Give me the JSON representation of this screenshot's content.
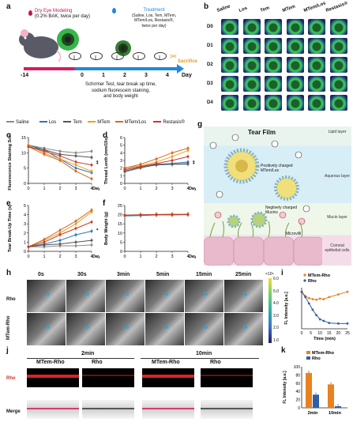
{
  "panels": {
    "a": {
      "label": "a",
      "modeling": [
        "Dry Eye Modeling",
        "(0.2% BAK, twice per day)"
      ],
      "treatment": [
        "Treatment",
        "(Saline, Los, Tem, MTem,",
        "MTem/Los, Restasis®,",
        "twice per day)"
      ],
      "sacrifice": "Sacrifice",
      "timeline": [
        "-14",
        "0",
        "1",
        "2",
        "3",
        "4"
      ],
      "day_label": "Day",
      "tests": [
        "Schirmer Test, tear break up time,",
        "sodium fluorescein staining,",
        "and body weight"
      ]
    },
    "b": {
      "label": "b",
      "groups": [
        "Saline",
        "Los",
        "Tem",
        "MTem",
        "MTem/Los",
        "Restasis®"
      ],
      "days": [
        "D0",
        "D1",
        "D2",
        "D3",
        "D4"
      ]
    },
    "legend": [
      "Saline",
      "Los",
      "Tem",
      "MTem",
      "MTem/Los",
      "Restasis®"
    ],
    "g": {
      "label": "g",
      "title": "Tear Film",
      "layers": [
        "Lipid layer",
        "Aqueous layer",
        "Mucin layer",
        "Corneal epithelial cells"
      ],
      "annotations": [
        "Positively charged MTem/Los",
        "Negtively charged Mucins",
        "Microvilli"
      ]
    },
    "h": {
      "label": "h",
      "times": [
        "0s",
        "30s",
        "3min",
        "5min",
        "15min",
        "25min"
      ],
      "rows": [
        "Rho",
        "MTem-Rho"
      ],
      "colorbar_title": "×10⁸",
      "colorbar_ticks": [
        "6.0",
        "5.0",
        "4.0",
        "3.0",
        "2.0",
        "1.0"
      ]
    },
    "j": {
      "label": "j",
      "times": [
        "2min",
        "10min"
      ],
      "cols": [
        "MTem-Rho",
        "Rho",
        "MTem-Rho",
        "Rho"
      ],
      "rows": [
        "Rho",
        "Merge"
      ]
    }
  },
  "chart_data": [
    {
      "panel": "c",
      "type": "line",
      "ylabel": "Fluorescence Staining Score",
      "xlabel": "Day",
      "x": [
        0,
        1,
        2,
        3,
        4
      ],
      "ylim": [
        0,
        15
      ],
      "yticks": [
        0,
        5,
        10,
        15
      ],
      "series": [
        {
          "name": "Saline",
          "color": "#8a8a8a",
          "values": [
            12.5,
            11.5,
            10.5,
            10,
            10.5
          ]
        },
        {
          "name": "Los",
          "color": "#2e75b6",
          "values": [
            12.5,
            11,
            8,
            5,
            3.5
          ]
        },
        {
          "name": "Tem",
          "color": "#555555",
          "values": [
            12,
            11,
            9.5,
            9,
            8.5
          ]
        },
        {
          "name": "MTem",
          "color": "#e8a020",
          "values": [
            12.5,
            10,
            8,
            6,
            4
          ]
        },
        {
          "name": "MTem/Los",
          "color": "#d46a1f",
          "values": [
            12,
            9.5,
            7.5,
            4,
            1.5
          ]
        },
        {
          "name": "Restasis®",
          "color": "#c83a2a",
          "values": [
            12,
            10.5,
            9,
            7,
            6
          ]
        }
      ],
      "annotation": "**"
    },
    {
      "panel": "d",
      "type": "line",
      "ylabel": "Thread Lenth (mm/15s)",
      "xlabel": "Day",
      "x": [
        0,
        1,
        2,
        3,
        4
      ],
      "ylim": [
        0,
        6
      ],
      "yticks": [
        0,
        1,
        2,
        3,
        4,
        5,
        6
      ],
      "series": [
        {
          "name": "Saline",
          "color": "#8a8a8a",
          "values": [
            1.5,
            2,
            2.5,
            2.5,
            2.5
          ]
        },
        {
          "name": "Los",
          "color": "#2e75b6",
          "values": [
            1.8,
            2.2,
            2.5,
            2.6,
            2.8
          ]
        },
        {
          "name": "Tem",
          "color": "#555555",
          "values": [
            1.6,
            2.1,
            2.4,
            2.5,
            2.6
          ]
        },
        {
          "name": "MTem",
          "color": "#e8a020",
          "values": [
            2,
            2.3,
            2.8,
            3.5,
            4.3
          ]
        },
        {
          "name": "MTem/Los",
          "color": "#d46a1f",
          "values": [
            2,
            2.5,
            3.2,
            4,
            4.6
          ]
        },
        {
          "name": "Restasis®",
          "color": "#c83a2a",
          "values": [
            1.8,
            2.2,
            2.6,
            3,
            3.5
          ]
        }
      ],
      "annotation": "**"
    },
    {
      "panel": "e",
      "type": "line",
      "ylabel": "Tear Break-Up Time (s)",
      "xlabel": "Day",
      "x": [
        0,
        1,
        2,
        3,
        4
      ],
      "ylim": [
        0,
        5
      ],
      "yticks": [
        0,
        1,
        2,
        3,
        4,
        5
      ],
      "series": [
        {
          "name": "Saline",
          "color": "#8a8a8a",
          "values": [
            0.5,
            0.5,
            0.6,
            0.6,
            0.7
          ]
        },
        {
          "name": "Los",
          "color": "#2e75b6",
          "values": [
            0.5,
            0.8,
            1.2,
            1.8,
            2.2
          ]
        },
        {
          "name": "Tem",
          "color": "#555555",
          "values": [
            0.5,
            0.7,
            0.8,
            1.0,
            1.2
          ]
        },
        {
          "name": "MTem",
          "color": "#e8a020",
          "values": [
            0.5,
            1.2,
            2.0,
            3.0,
            4.3
          ]
        },
        {
          "name": "MTem/Los",
          "color": "#d46a1f",
          "values": [
            0.5,
            1.3,
            2.3,
            3.3,
            4.5
          ]
        },
        {
          "name": "Restasis®",
          "color": "#c83a2a",
          "values": [
            0.5,
            1.0,
            1.8,
            2.5,
            3.2
          ]
        }
      ],
      "annotation": "*"
    },
    {
      "panel": "f",
      "type": "line",
      "ylabel": "Body Weight (g)",
      "xlabel": "Day",
      "x": [
        0,
        1,
        2,
        3,
        4
      ],
      "ylim": [
        0,
        25
      ],
      "yticks": [
        0,
        5,
        10,
        15,
        20,
        25
      ],
      "series": [
        {
          "name": "Saline",
          "color": "#8a8a8a",
          "values": [
            19.5,
            19.8,
            20,
            20,
            20.2
          ]
        },
        {
          "name": "Los",
          "color": "#2e75b6",
          "values": [
            19.3,
            19.5,
            19.8,
            19.9,
            20
          ]
        },
        {
          "name": "Tem",
          "color": "#555555",
          "values": [
            19.8,
            20,
            20.1,
            20.2,
            20.1
          ]
        },
        {
          "name": "MTem",
          "color": "#e8a020",
          "values": [
            19.6,
            19.7,
            19.9,
            20.1,
            20.3
          ]
        },
        {
          "name": "MTem/Los",
          "color": "#d46a1f",
          "values": [
            19.5,
            19.9,
            20,
            20.2,
            20.2
          ]
        },
        {
          "name": "Restasis®",
          "color": "#c83a2a",
          "values": [
            19.7,
            19.8,
            20.1,
            20,
            20.1
          ]
        }
      ]
    },
    {
      "panel": "i",
      "type": "line",
      "ylabel": "FL Intensity [a.u.]",
      "xlabel": "Time (min)",
      "x": [
        0,
        2,
        4,
        6,
        8,
        10,
        12,
        15,
        20,
        25
      ],
      "xticks": [
        0,
        5,
        10,
        15,
        20,
        25
      ],
      "series": [
        {
          "name": "MTem-Rho",
          "color": "#e8821e",
          "values": [
            1.0,
            0.92,
            0.88,
            0.86,
            0.85,
            0.87,
            0.86,
            0.9,
            0.95,
            1.0
          ]
        },
        {
          "name": "Rho",
          "color": "#2e5fa8",
          "values": [
            1.0,
            0.9,
            0.78,
            0.66,
            0.56,
            0.48,
            0.45,
            0.41,
            0.4,
            0.4
          ]
        }
      ]
    },
    {
      "panel": "k",
      "type": "bar",
      "ylabel": "FL Intensity [a.u.]",
      "categories": [
        "2min",
        "10min"
      ],
      "ylim": [
        0,
        100
      ],
      "yticks": [
        0,
        20,
        40,
        60,
        80,
        100
      ],
      "series": [
        {
          "name": "MTem-Rho",
          "color": "#e8821e",
          "values": [
            85,
            57
          ]
        },
        {
          "name": "Rho",
          "color": "#2e5fa8",
          "values": [
            32,
            4
          ]
        }
      ]
    }
  ]
}
